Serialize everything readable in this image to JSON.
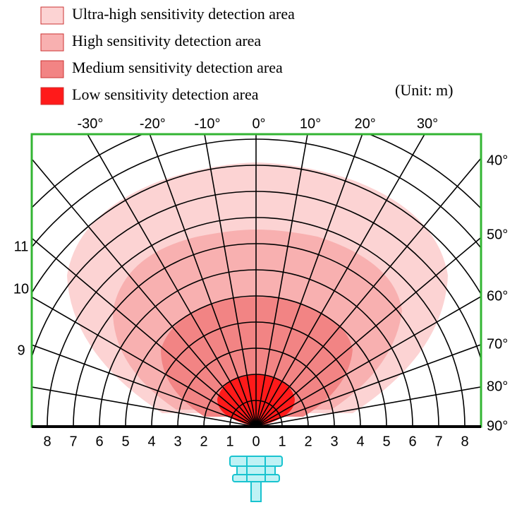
{
  "legend": [
    {
      "label": "Ultra-high sensitivity detection area",
      "color": "#fcd3d3"
    },
    {
      "label": "High sensitivity detection area",
      "color": "#f8b0b0"
    },
    {
      "label": "Medium sensitivity detection area",
      "color": "#f28484"
    },
    {
      "label": "Low sensitivity detection area",
      "color": "#ff1a1a"
    }
  ],
  "unit": "(Unit: m)",
  "top_angles": [
    "-30°",
    "-20°",
    "-10°",
    "0°",
    "10°",
    "20°",
    "30°"
  ],
  "right_angles": [
    "40°",
    "50°",
    "60°",
    "70°",
    "80°",
    "90°"
  ],
  "left_labels": [
    "11",
    "10",
    "9"
  ],
  "bottom_labels": [
    "8",
    "7",
    "6",
    "5",
    "4",
    "3",
    "2",
    "1",
    "0",
    "1",
    "2",
    "3",
    "4",
    "5",
    "6",
    "7",
    "8"
  ]
}
